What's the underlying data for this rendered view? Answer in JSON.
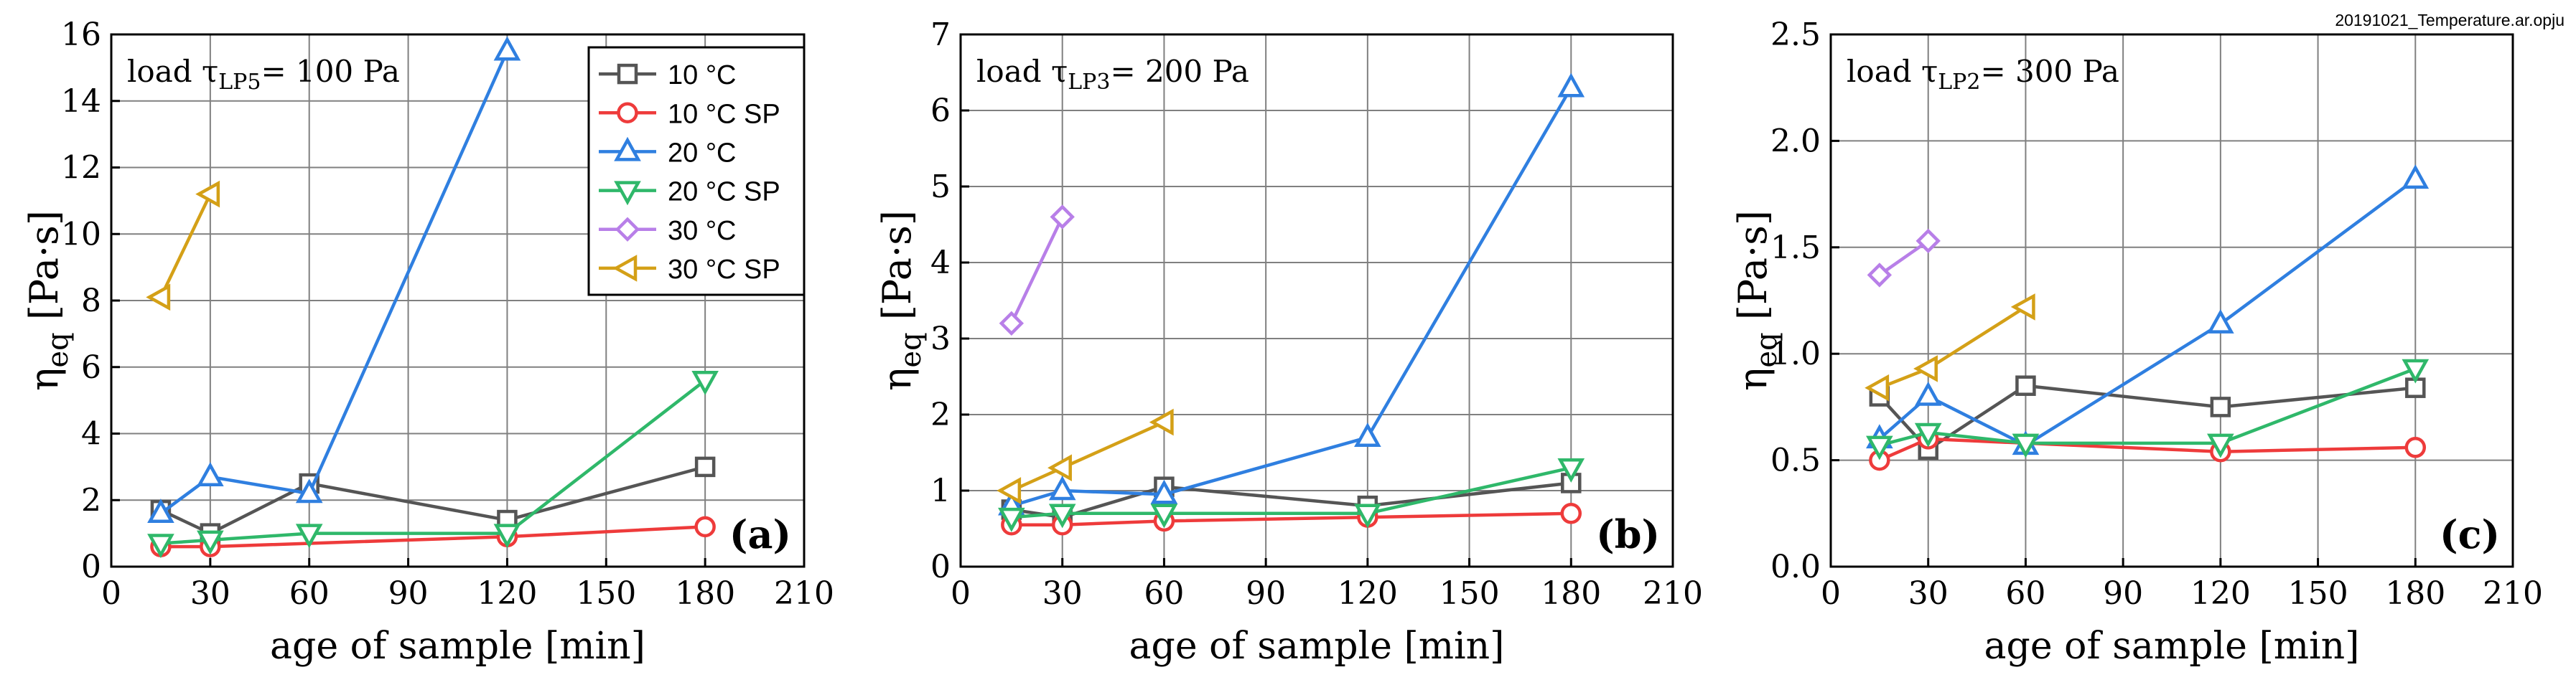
{
  "file_label": "20191021_Temperature.ar.opju",
  "colors": {
    "10 °C": "#555555",
    "10 °C SP": "#ee3b3b",
    "20 °C": "#2f7fe0",
    "20 °C SP": "#2fb86a",
    "30 °C": "#b87fe8",
    "30 °C SP": "#d4a017"
  },
  "markers": {
    "10 °C": "square",
    "10 °C SP": "circle",
    "20 °C": "triangle-up",
    "20 °C SP": "triangle-down",
    "30 °C": "diamond",
    "30 °C SP": "triangle-left"
  },
  "legend": [
    "10 °C",
    "10 °C SP",
    "20 °C",
    "20 °C SP",
    "30 °C",
    "30 °C SP"
  ],
  "chart_data": [
    {
      "type": "line",
      "panel_label": "(a)",
      "load_text": "load τ",
      "load_sub": "LP5",
      "load_value": "= 100 Pa",
      "xlabel": "age of sample [min]",
      "ylabel_main": "η",
      "ylabel_sub": "eq",
      "ylabel_unit": "[Pa·s]",
      "xlim": [
        0,
        210
      ],
      "ylim": [
        0,
        16
      ],
      "xticks": [
        0,
        30,
        60,
        90,
        120,
        150,
        180,
        210
      ],
      "xtick_labels": [
        "0",
        "30",
        "60",
        "90",
        "120",
        "150",
        "180",
        "210"
      ],
      "yticks": [
        0,
        2,
        4,
        6,
        8,
        10,
        12,
        14,
        16
      ],
      "ytick_labels": [
        "0",
        "2",
        "4",
        "6",
        "8",
        "10",
        "12",
        "14",
        "16"
      ],
      "legend": "top-right",
      "series": [
        {
          "name": "10 °C",
          "x": [
            15,
            30,
            60,
            120,
            180
          ],
          "y": [
            1.7,
            1.0,
            2.5,
            1.4,
            3.0
          ]
        },
        {
          "name": "10 °C SP",
          "x": [
            15,
            30,
            120,
            180
          ],
          "y": [
            0.6,
            0.6,
            0.9,
            1.2
          ]
        },
        {
          "name": "20 °C",
          "x": [
            15,
            30,
            60,
            120
          ],
          "y": [
            1.6,
            2.7,
            2.2,
            15.5
          ]
        },
        {
          "name": "20 °C SP",
          "x": [
            15,
            30,
            60,
            120,
            180
          ],
          "y": [
            0.7,
            0.8,
            1.0,
            1.0,
            5.6
          ]
        },
        {
          "name": "30 °C SP",
          "x": [
            15,
            30
          ],
          "y": [
            8.1,
            11.2
          ]
        }
      ]
    },
    {
      "type": "line",
      "panel_label": "(b)",
      "load_text": "load τ",
      "load_sub": "LP3",
      "load_value": "= 200 Pa",
      "xlabel": "age of sample [min]",
      "ylabel_main": "η",
      "ylabel_sub": "eq",
      "ylabel_unit": "[Pa·s]",
      "xlim": [
        0,
        210
      ],
      "ylim": [
        0,
        7
      ],
      "xticks": [
        0,
        30,
        60,
        90,
        120,
        150,
        180,
        210
      ],
      "xtick_labels": [
        "0",
        "30",
        "60",
        "90",
        "120",
        "150",
        "180",
        "210"
      ],
      "yticks": [
        0,
        1,
        2,
        3,
        4,
        5,
        6,
        7
      ],
      "ytick_labels": [
        "0",
        "1",
        "2",
        "3",
        "4",
        "5",
        "6",
        "7"
      ],
      "legend": "none",
      "series": [
        {
          "name": "10 °C",
          "x": [
            15,
            30,
            60,
            120,
            180
          ],
          "y": [
            0.75,
            0.65,
            1.05,
            0.8,
            1.1
          ]
        },
        {
          "name": "10 °C SP",
          "x": [
            15,
            30,
            60,
            120,
            180
          ],
          "y": [
            0.55,
            0.55,
            0.6,
            0.65,
            0.7
          ]
        },
        {
          "name": "20 °C",
          "x": [
            15,
            30,
            60,
            120,
            180
          ],
          "y": [
            0.8,
            1.0,
            0.95,
            1.7,
            6.3
          ]
        },
        {
          "name": "20 °C SP",
          "x": [
            15,
            30,
            60,
            120,
            180
          ],
          "y": [
            0.65,
            0.7,
            0.7,
            0.7,
            1.3
          ]
        },
        {
          "name": "30 °C",
          "x": [
            15,
            30
          ],
          "y": [
            3.2,
            4.6
          ]
        },
        {
          "name": "30 °C SP",
          "x": [
            15,
            30,
            60
          ],
          "y": [
            1.0,
            1.3,
            1.9
          ]
        }
      ]
    },
    {
      "type": "line",
      "panel_label": "(c)",
      "load_text": "load τ",
      "load_sub": "LP2",
      "load_value": "= 300 Pa",
      "xlabel": "age of sample [min]",
      "ylabel_main": "η",
      "ylabel_sub": "eq",
      "ylabel_unit": "[Pa·s]",
      "xlim": [
        0,
        210
      ],
      "ylim": [
        0,
        2.5
      ],
      "xticks": [
        0,
        30,
        60,
        90,
        120,
        150,
        180,
        210
      ],
      "xtick_labels": [
        "0",
        "30",
        "60",
        "90",
        "120",
        "150",
        "180",
        "210"
      ],
      "yticks": [
        0,
        0.5,
        1.0,
        1.5,
        2.0,
        2.5
      ],
      "ytick_labels": [
        "0.0",
        "0.5",
        "1.0",
        "1.5",
        "2.0",
        "2.5"
      ],
      "legend": "none",
      "series": [
        {
          "name": "10 °C",
          "x": [
            15,
            30,
            60,
            120,
            180
          ],
          "y": [
            0.8,
            0.55,
            0.85,
            0.75,
            0.84
          ]
        },
        {
          "name": "10 °C SP",
          "x": [
            15,
            30,
            120,
            180
          ],
          "y": [
            0.5,
            0.6,
            0.54,
            0.56
          ]
        },
        {
          "name": "20 °C",
          "x": [
            15,
            30,
            60,
            120,
            180
          ],
          "y": [
            0.6,
            0.8,
            0.57,
            1.14,
            1.82
          ]
        },
        {
          "name": "20 °C SP",
          "x": [
            15,
            30,
            60,
            120,
            180
          ],
          "y": [
            0.57,
            0.63,
            0.58,
            0.58,
            0.93
          ]
        },
        {
          "name": "30 °C",
          "x": [
            15,
            30
          ],
          "y": [
            1.37,
            1.53
          ]
        },
        {
          "name": "30 °C SP",
          "x": [
            15,
            30,
            60
          ],
          "y": [
            0.84,
            0.93,
            1.22
          ]
        }
      ]
    }
  ]
}
